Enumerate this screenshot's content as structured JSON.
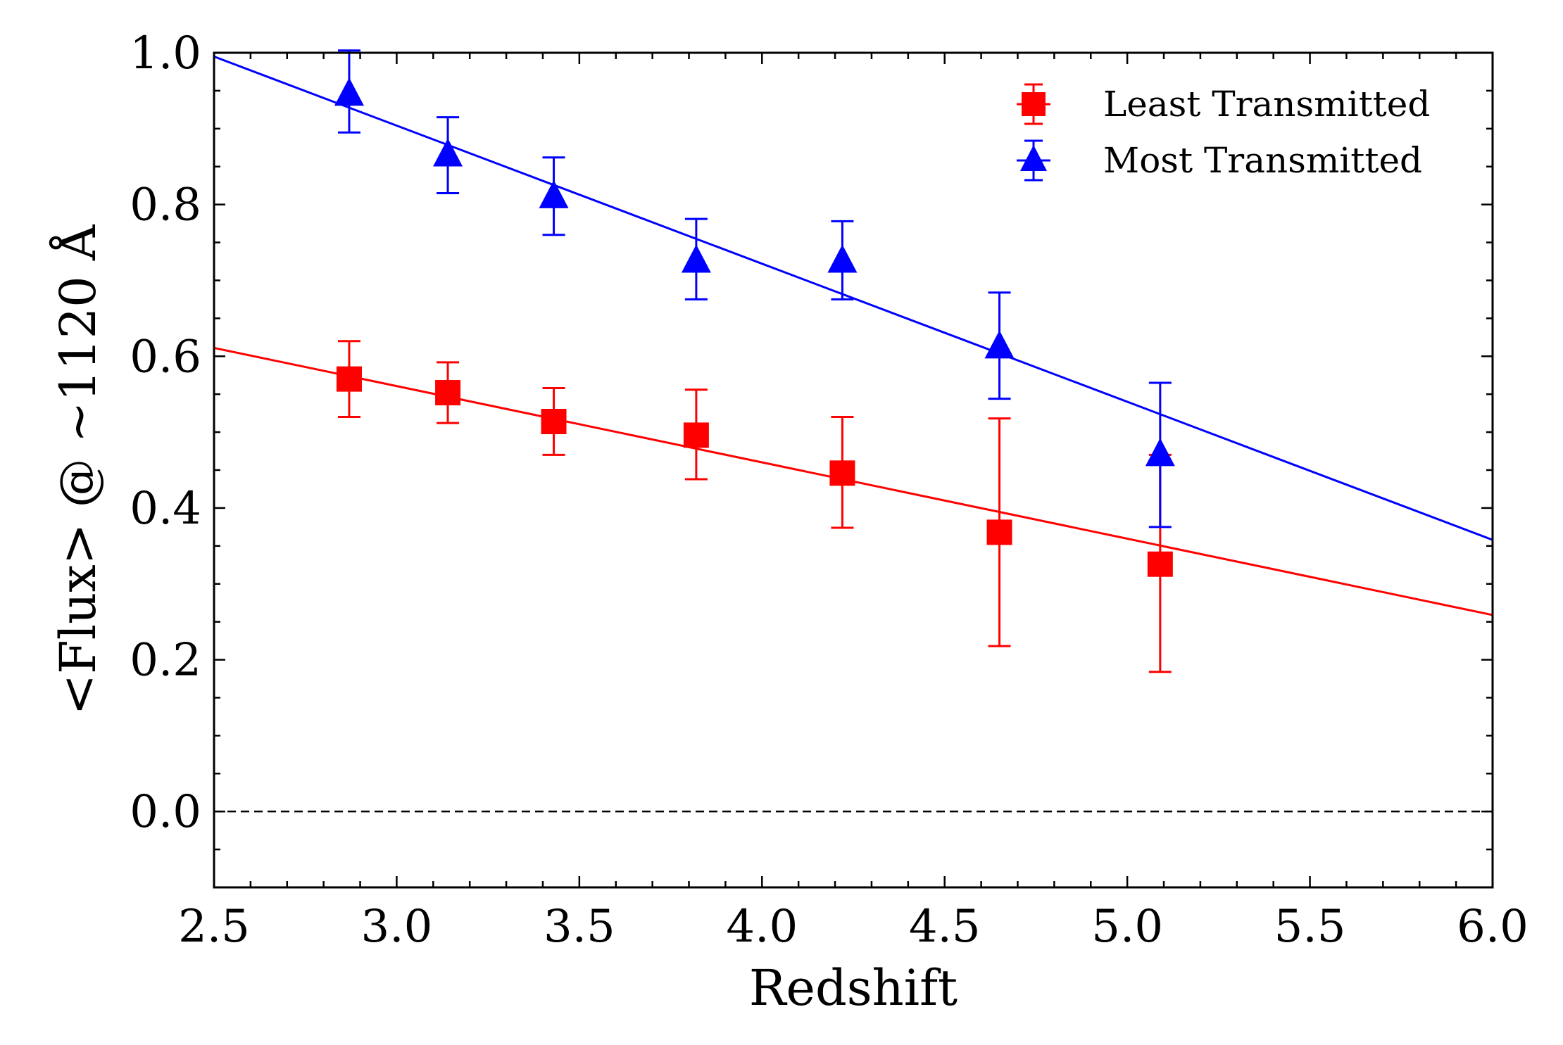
{
  "chart_data": {
    "type": "scatter",
    "title": "",
    "xlabel": "Redshift",
    "ylabel": "<Flux> @ ~1120 Å",
    "xlim": [
      2.5,
      6.0
    ],
    "ylim": [
      -0.1,
      1.0
    ],
    "xticks": [
      2.5,
      3.0,
      3.5,
      4.0,
      4.5,
      5.0,
      5.5,
      6.0
    ],
    "xtick_labels": [
      "2.5",
      "3.0",
      "3.5",
      "4.0",
      "4.5",
      "5.0",
      "5.5",
      "6.0"
    ],
    "yticks": [
      0.0,
      0.2,
      0.4,
      0.6,
      0.8,
      1.0
    ],
    "ytick_labels": [
      "0.0",
      "0.2",
      "0.4",
      "0.6",
      "0.8",
      "1.0"
    ],
    "reference_line": {
      "y": 0.0,
      "style": "dashed",
      "color": "#000000"
    },
    "legend_location": "top-right",
    "series": [
      {
        "name": "Least Transmitted",
        "color": "#ff0000",
        "marker": "square",
        "x": [
          2.87,
          3.14,
          3.43,
          3.82,
          4.22,
          4.65,
          5.09
        ],
        "y": [
          0.57,
          0.552,
          0.514,
          0.496,
          0.446,
          0.368,
          0.326
        ],
        "yerr_low": [
          0.05,
          0.04,
          0.044,
          0.058,
          0.072,
          0.15,
          0.142
        ],
        "yerr_high": [
          0.05,
          0.04,
          0.044,
          0.06,
          0.074,
          0.15,
          0.144
        ],
        "fit": {
          "x": [
            2.5,
            6.0
          ],
          "y": [
            0.611,
            0.259
          ]
        }
      },
      {
        "name": "Most Transmitted",
        "color": "#0000ff",
        "marker": "triangle",
        "x": [
          2.87,
          3.14,
          3.43,
          3.82,
          4.22,
          4.65,
          5.09
        ],
        "y": [
          0.945,
          0.865,
          0.81,
          0.725,
          0.725,
          0.612,
          0.47
        ],
        "yerr_low": [
          0.05,
          0.05,
          0.05,
          0.05,
          0.05,
          0.068,
          0.095
        ],
        "yerr_high": [
          0.058,
          0.05,
          0.052,
          0.056,
          0.053,
          0.072,
          0.095
        ],
        "fit": {
          "x": [
            2.5,
            6.0
          ],
          "y": [
            0.995,
            0.358
          ]
        }
      }
    ]
  }
}
